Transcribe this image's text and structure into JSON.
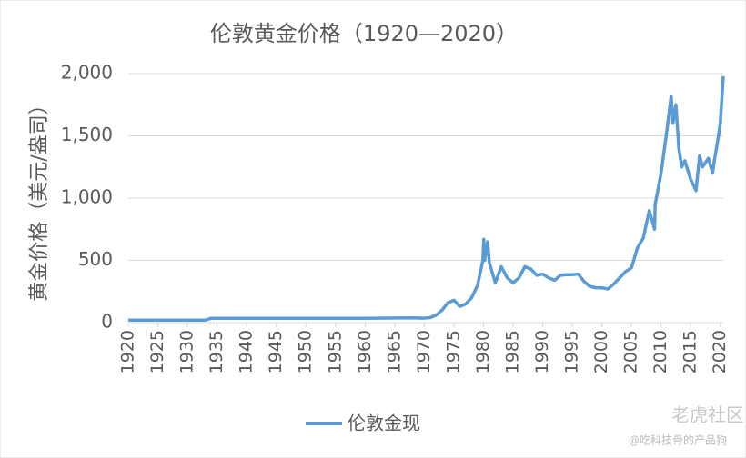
{
  "chart_data": {
    "type": "line",
    "title": "伦敦黄金价格（1920—2020）",
    "y_label": "黄金价格（美元/盎司）",
    "x": [
      1920,
      1925,
      1930,
      1933,
      1934,
      1940,
      1950,
      1960,
      1968,
      1970,
      1971,
      1972,
      1973,
      1974,
      1975,
      1976,
      1977,
      1978,
      1979,
      1979.9,
      1980.05,
      1980.2,
      1980.7,
      1981,
      1982,
      1983,
      1984,
      1985,
      1986,
      1987,
      1988,
      1989,
      1990,
      1991,
      1992,
      1993,
      1994,
      1995,
      1996,
      1997,
      1998,
      1999,
      2000,
      2001,
      2002,
      2003,
      2004,
      2005,
      2006,
      2007,
      2008,
      2008.9,
      2009,
      2010,
      2011,
      2011.7,
      2012,
      2012.5,
      2013,
      2013.5,
      2014,
      2015,
      2015.9,
      2016.5,
      2017,
      2018,
      2018.7,
      2019,
      2019.7,
      2020,
      2020.5
    ],
    "series": [
      {
        "name": "伦敦金现",
        "color": "#5b9bd5",
        "values": [
          20,
          20,
          20,
          20,
          35,
          35,
          35,
          35,
          38,
          36,
          40,
          60,
          100,
          160,
          180,
          130,
          150,
          200,
          300,
          500,
          670,
          500,
          650,
          480,
          320,
          450,
          360,
          320,
          360,
          450,
          430,
          380,
          390,
          360,
          340,
          380,
          385,
          385,
          390,
          330,
          290,
          280,
          280,
          270,
          310,
          360,
          410,
          440,
          600,
          680,
          900,
          750,
          950,
          1200,
          1550,
          1820,
          1600,
          1750,
          1400,
          1250,
          1300,
          1150,
          1060,
          1340,
          1250,
          1320,
          1200,
          1300,
          1500,
          1600,
          1980
        ]
      }
    ],
    "xlim": [
      1920,
      2020.5
    ],
    "xticks": [
      1920,
      1925,
      1930,
      1935,
      1940,
      1945,
      1950,
      1955,
      1960,
      1965,
      1970,
      1975,
      1980,
      1985,
      1990,
      1995,
      2000,
      2005,
      2010,
      2015,
      2020
    ],
    "ylim": [
      0,
      2000
    ],
    "yticks": [
      0,
      500,
      {
        "value": 1000,
        "label": "1,000"
      },
      {
        "value": 1500,
        "label": "1,500"
      },
      {
        "value": 2000,
        "label": "2,000"
      }
    ],
    "grid": true
  },
  "watermark": {
    "brand": "老虎社区",
    "author": "@吃科技骨的产品狗"
  }
}
